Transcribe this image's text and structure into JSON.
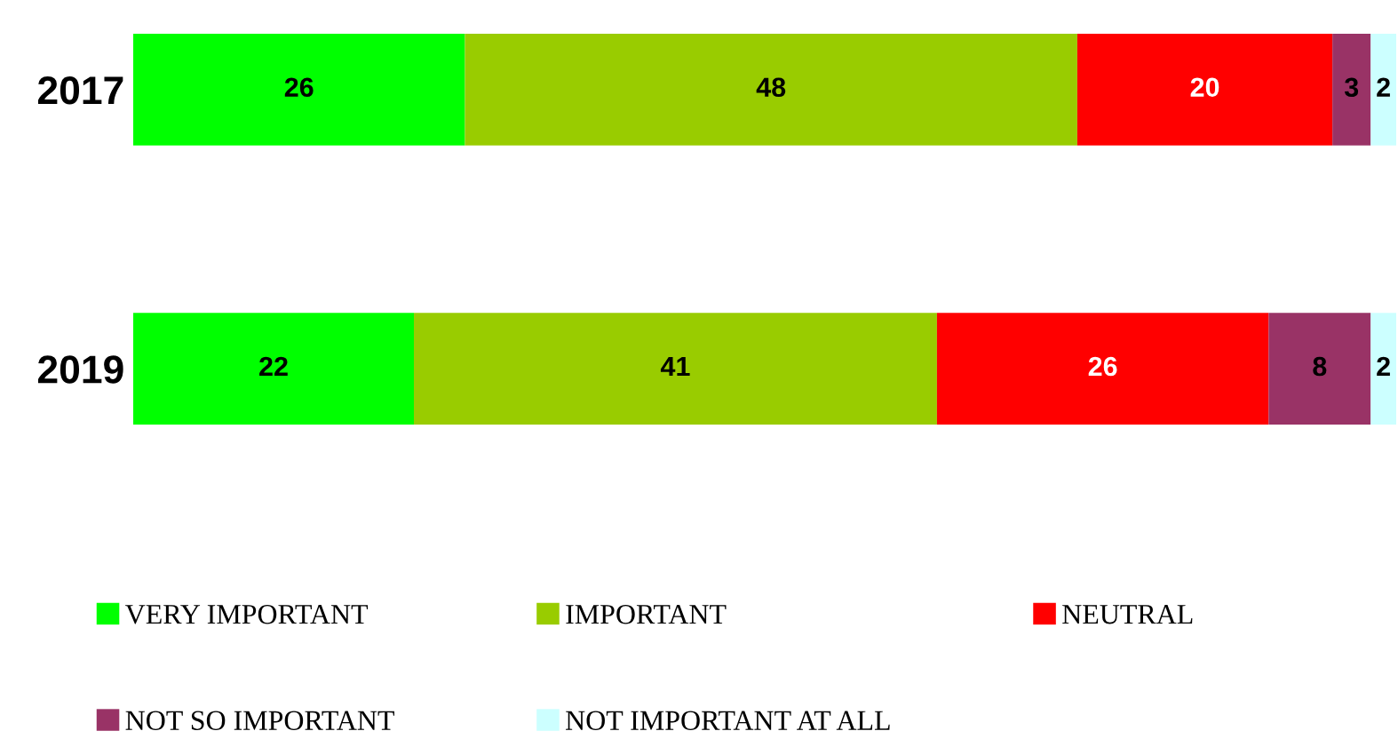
{
  "chart_data": {
    "type": "bar",
    "orientation": "horizontal",
    "stacked": true,
    "categories": [
      "2017",
      "2019"
    ],
    "series": [
      {
        "name": "VERY IMPORTANT",
        "color": "#00ff00",
        "values": [
          26,
          22
        ]
      },
      {
        "name": "IMPORTANT",
        "color": "#99cc00",
        "values": [
          48,
          41
        ]
      },
      {
        "name": "NEUTRAL",
        "color": "#ff0000",
        "values": [
          20,
          26
        ]
      },
      {
        "name": "NOT SO IMPORTANT",
        "color": "#993366",
        "values": [
          3,
          8
        ]
      },
      {
        "name": "NOT IMPORTANT AT ALL",
        "color": "#ccffff",
        "values": [
          2,
          2
        ]
      }
    ],
    "xlim": [
      0,
      99
    ],
    "tick_labels": "y",
    "data_labels": true,
    "legend": "bottom",
    "grid": false
  }
}
